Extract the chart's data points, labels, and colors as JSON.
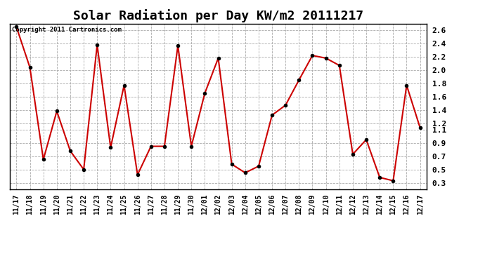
{
  "title": "Solar Radiation per Day KW/m2 20111217",
  "copyright": "Copyright 2011 Cartronics.com",
  "labels": [
    "11/17",
    "11/18",
    "11/19",
    "11/20",
    "11/21",
    "11/22",
    "11/23",
    "11/24",
    "11/25",
    "11/26",
    "11/27",
    "11/28",
    "11/29",
    "11/30",
    "12/01",
    "12/02",
    "12/03",
    "12/04",
    "12/05",
    "12/06",
    "12/07",
    "12/08",
    "12/09",
    "12/10",
    "12/11",
    "12/12",
    "12/13",
    "12/14",
    "12/15",
    "12/16",
    "12/17"
  ],
  "values": [
    2.65,
    2.04,
    0.65,
    1.38,
    0.78,
    0.5,
    2.38,
    0.83,
    1.77,
    0.42,
    0.85,
    0.85,
    2.37,
    0.85,
    1.65,
    2.18,
    0.58,
    0.45,
    0.55,
    1.32,
    1.47,
    1.85,
    2.22,
    2.18,
    2.07,
    0.73,
    0.95,
    0.38,
    0.33,
    1.77,
    1.13
  ],
  "line_color": "#cc0000",
  "marker": "o",
  "marker_color": "#000000",
  "ylim": [
    0.2,
    2.7
  ],
  "yticks": [
    0.3,
    0.5,
    0.7,
    0.9,
    1.1,
    1.2,
    1.4,
    1.6,
    1.8,
    2.0,
    2.2,
    2.4,
    2.6
  ],
  "ytick_labels": [
    "0.3",
    "0.5",
    "0.7",
    "0.9",
    "1.1",
    "1.2",
    "1.4",
    "1.6",
    "1.8",
    "2.0",
    "2.2",
    "2.4",
    "2.6"
  ],
  "bg_color": "#ffffff",
  "grid_color": "#aaaaaa",
  "title_fontsize": 13,
  "label_fontsize": 7,
  "copyright_fontsize": 6.5
}
